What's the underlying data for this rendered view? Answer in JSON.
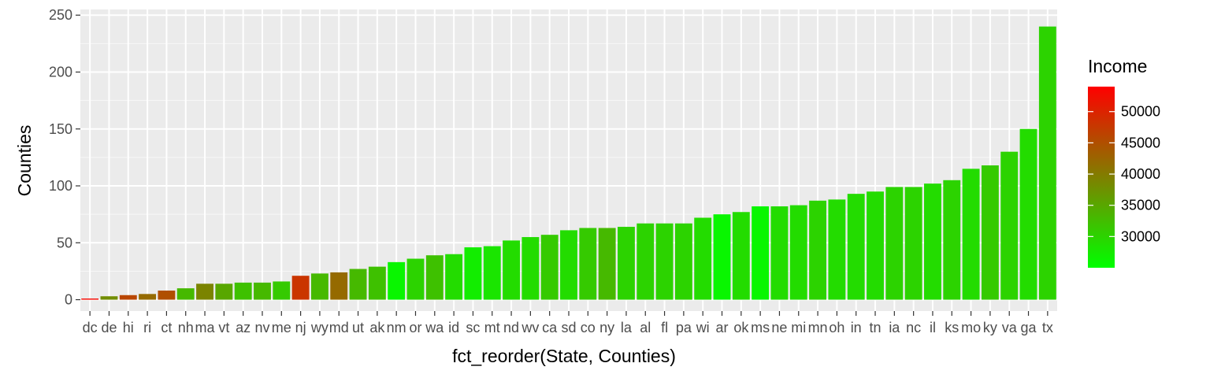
{
  "chart_data": {
    "type": "bar",
    "xlabel": "fct_reorder(State, Counties)",
    "ylabel": "Counties",
    "ylim": [
      0,
      250
    ],
    "yticks": [
      0,
      50,
      100,
      150,
      200,
      250
    ],
    "grid": true,
    "legend_position": "right",
    "legend": {
      "title": "Income",
      "type": "gradient",
      "low_color": "#00ff00",
      "high_color": "#ff0000",
      "range": [
        25000,
        54000
      ],
      "breaks": [
        30000,
        35000,
        40000,
        45000,
        50000
      ]
    },
    "categories": [
      "dc",
      "de",
      "hi",
      "ri",
      "ct",
      "nh",
      "ma",
      "vt",
      "az",
      "nv",
      "me",
      "nj",
      "wy",
      "md",
      "ut",
      "ak",
      "nm",
      "or",
      "wa",
      "id",
      "sc",
      "mt",
      "nd",
      "wv",
      "ca",
      "sd",
      "co",
      "ny",
      "la",
      "al",
      "fl",
      "pa",
      "wi",
      "ar",
      "ok",
      "ms",
      "ne",
      "mi",
      "mn",
      "oh",
      "in",
      "tn",
      "ia",
      "nc",
      "il",
      "ks",
      "mo",
      "ky",
      "va",
      "ga",
      "tx"
    ],
    "values": [
      1,
      3,
      4,
      5,
      8,
      10,
      14,
      14,
      15,
      15,
      16,
      21,
      23,
      24,
      27,
      29,
      33,
      36,
      39,
      40,
      46,
      47,
      52,
      55,
      57,
      61,
      63,
      63,
      64,
      67,
      67,
      67,
      72,
      75,
      77,
      82,
      82,
      83,
      87,
      88,
      93,
      95,
      99,
      99,
      102,
      105,
      115,
      118,
      130,
      150,
      240
    ],
    "income": [
      53000,
      38000,
      46000,
      42000,
      45000,
      33000,
      39000,
      35000,
      32000,
      33000,
      31000,
      48000,
      33000,
      42000,
      33000,
      32000,
      26000,
      30000,
      32000,
      29000,
      27000,
      28000,
      29000,
      29000,
      31000,
      29000,
      31000,
      33000,
      30000,
      30000,
      30000,
      30000,
      29000,
      26000,
      29000,
      26000,
      29000,
      29000,
      30000,
      29000,
      29000,
      29000,
      30000,
      30000,
      29000,
      30000,
      29000,
      31000,
      30000,
      29000,
      30000
    ]
  }
}
